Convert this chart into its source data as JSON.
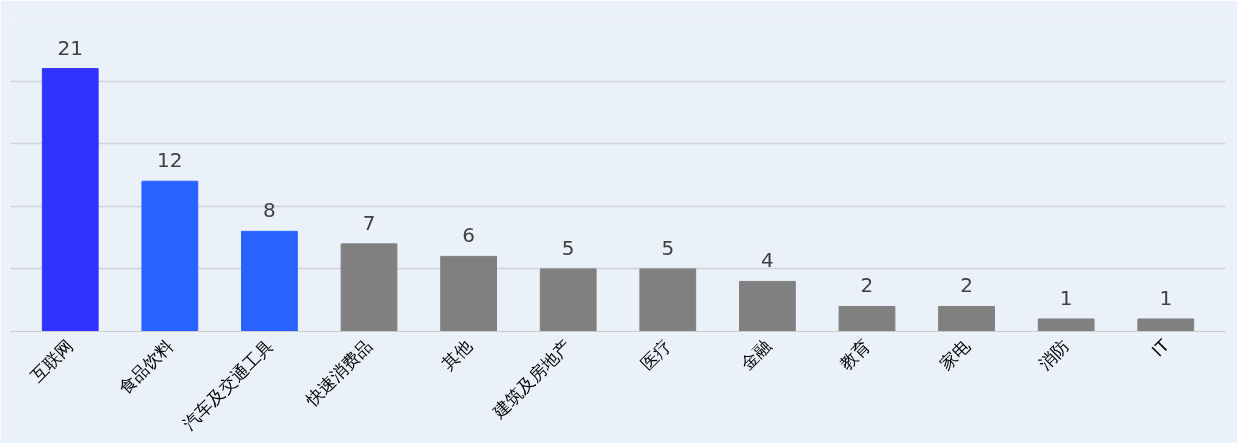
{
  "chart_data": {
    "type": "bar",
    "categories": [
      "互联网",
      "食品饮料",
      "汽车及交通工具",
      "快速消费品",
      "其他",
      "建筑及房地产",
      "医疗",
      "金融",
      "教育",
      "家电",
      "消防",
      "IT"
    ],
    "values": [
      21,
      12,
      8,
      7,
      6,
      5,
      5,
      4,
      2,
      2,
      1,
      1
    ],
    "colors": [
      "#3033ff",
      "#2962ff",
      "#2962ff",
      "#808080",
      "#808080",
      "#808080",
      "#808080",
      "#808080",
      "#808080",
      "#808080",
      "#808080",
      "#808080"
    ],
    "ylim": [
      0,
      25
    ],
    "yticks": [
      0,
      5,
      10,
      15,
      20,
      25
    ],
    "tick_labels": "x",
    "grid": "y",
    "data_labels": true
  }
}
